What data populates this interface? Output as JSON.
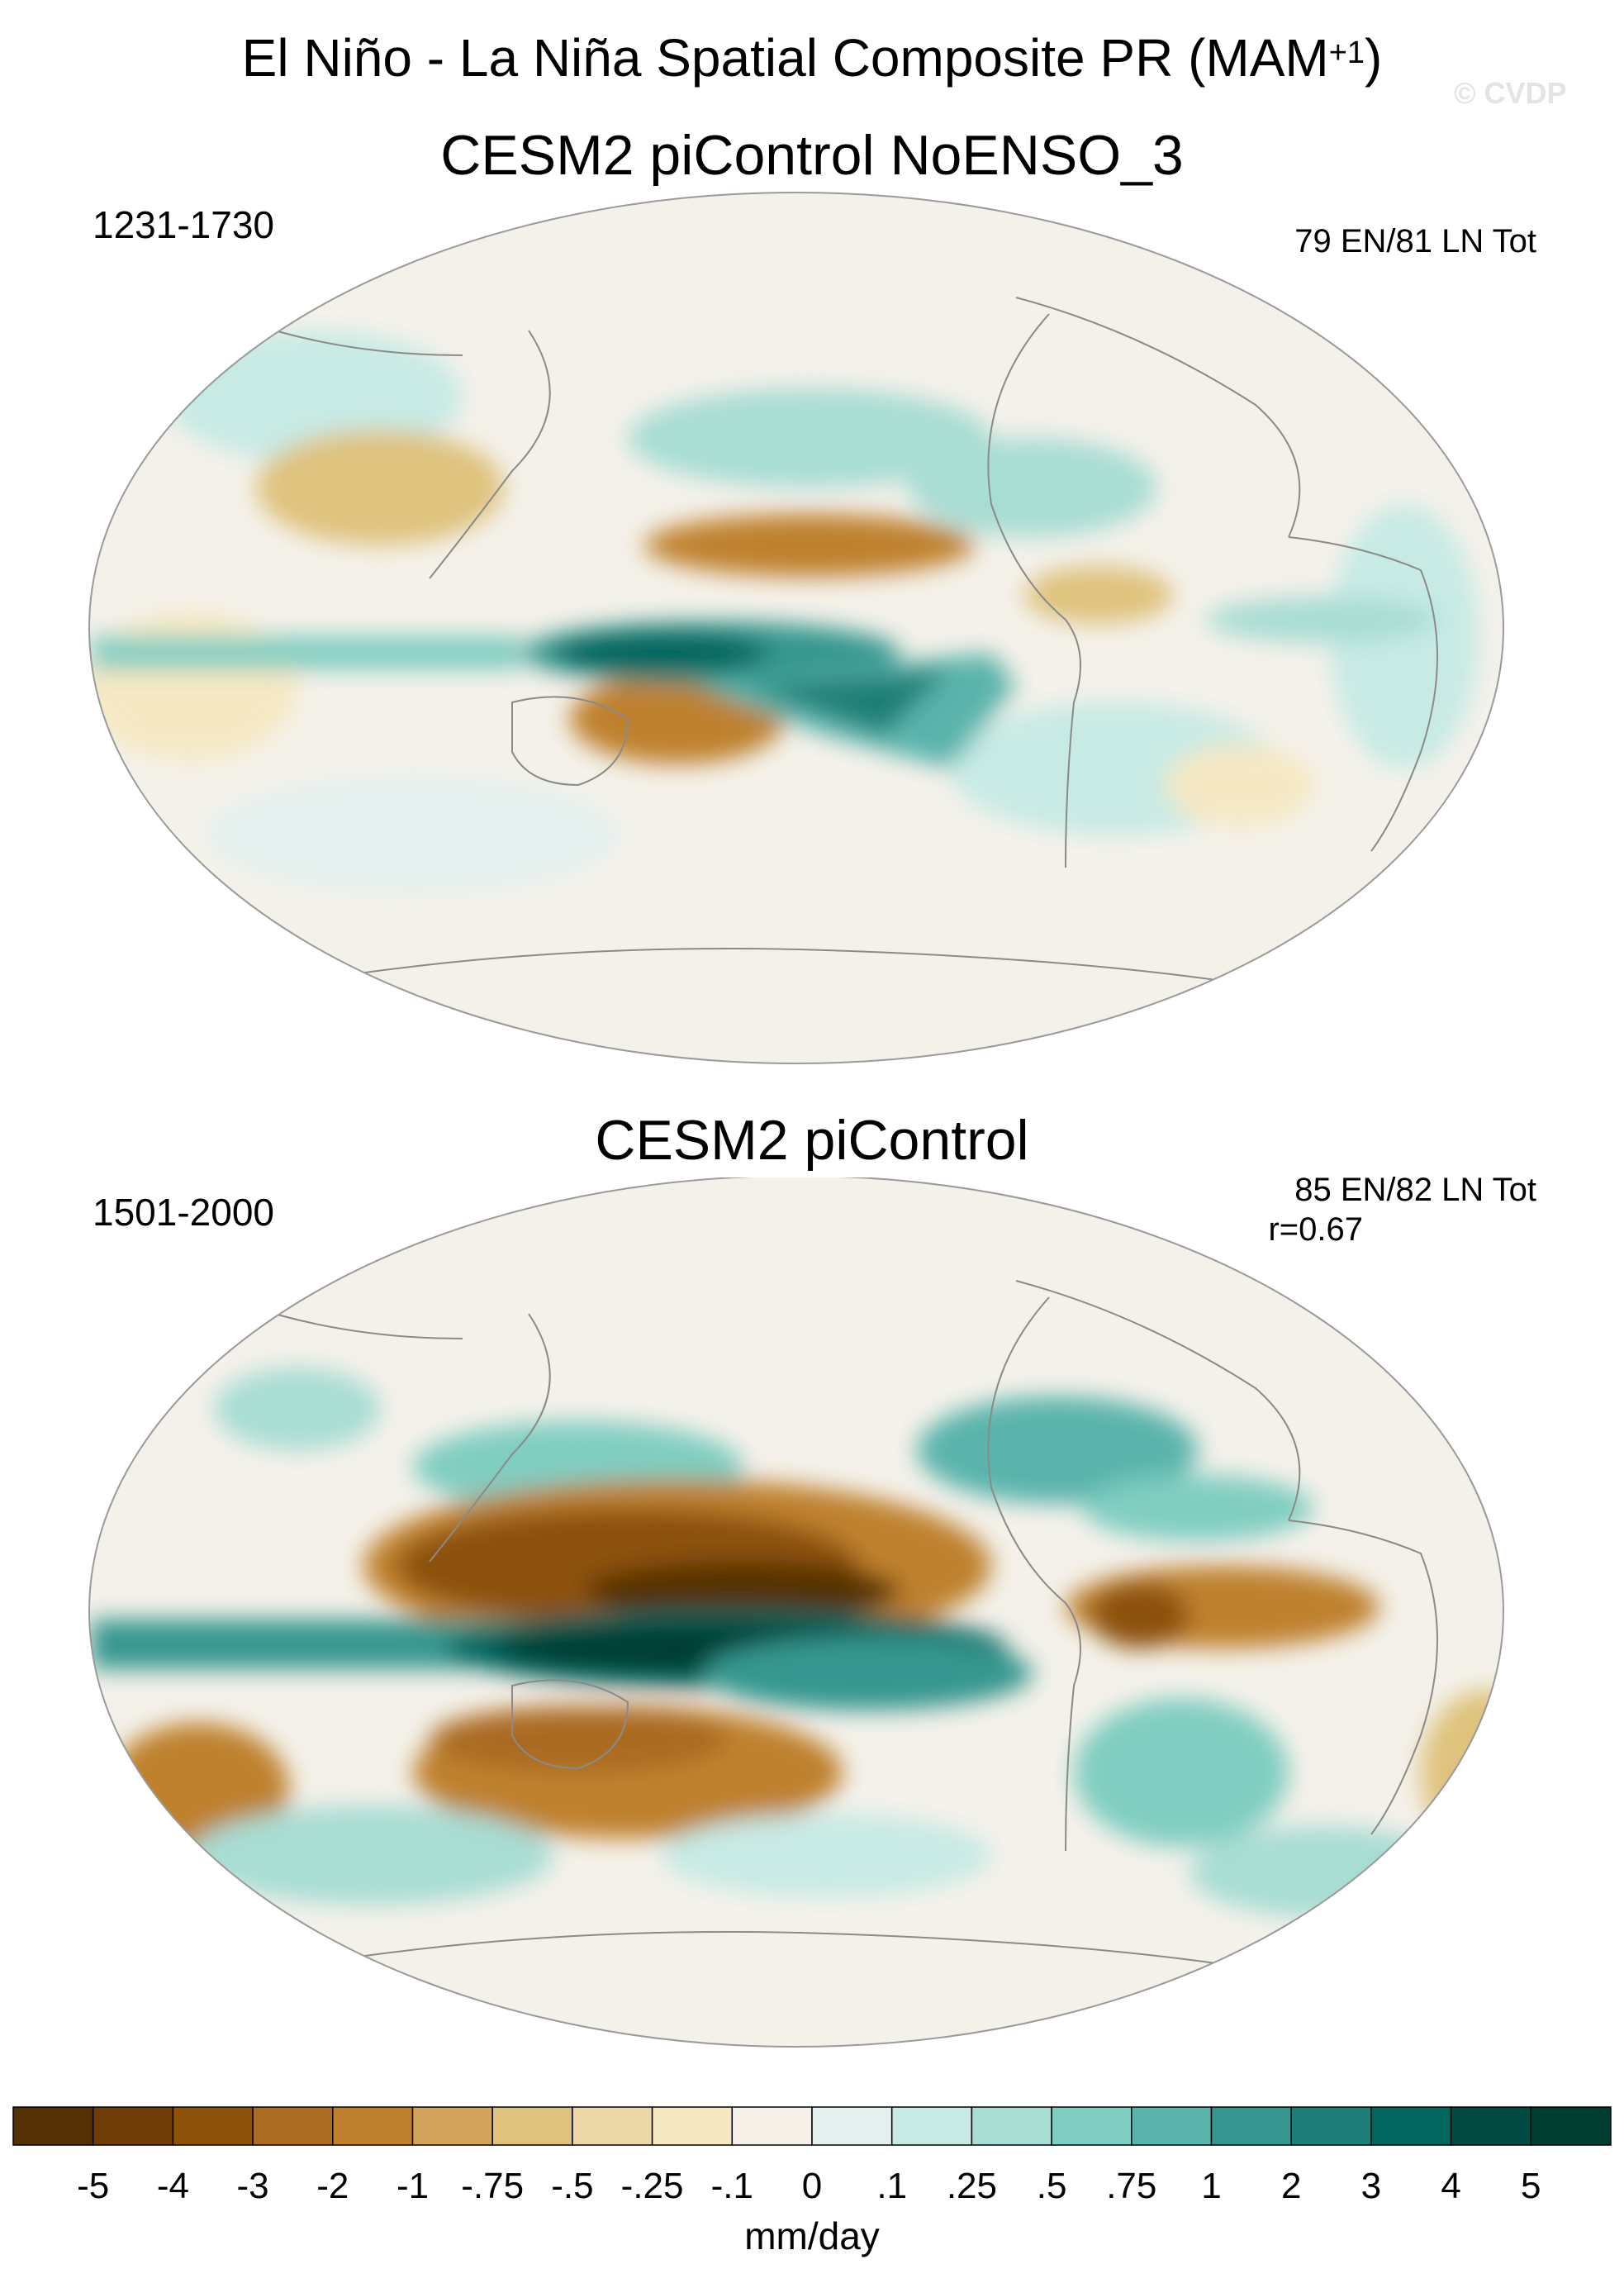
{
  "title": {
    "main": "El Niño - La Niña Spatial Composite PR (MAM",
    "superscript": "+1",
    "close": ")",
    "watermark": "© CVDP"
  },
  "panels": [
    {
      "title": "CESM2 piControl NoENSO_3",
      "period": "1231-1730",
      "counts": "79 EN/81 LN Tot",
      "pattern_correlation": ""
    },
    {
      "title": "CESM2 piControl",
      "period": "1501-2000",
      "counts": "85 EN/82 LN Tot",
      "pattern_correlation": "r=0.67"
    }
  ],
  "colorbar": {
    "units": "mm/day",
    "labels": [
      "-5",
      "-4",
      "-3",
      "-2",
      "-1",
      "-.75",
      "-.5",
      "-.25",
      "-.1",
      "0",
      ".1",
      ".25",
      ".5",
      ".75",
      "1",
      "2",
      "3",
      "4",
      "5"
    ],
    "colors": [
      "#543005",
      "#6f3d08",
      "#8c510a",
      "#ab6b22",
      "#bf812d",
      "#d2a35a",
      "#dfc27d",
      "#ecd7a8",
      "#f6e8c3",
      "#f5f1e8",
      "#e3f0ee",
      "#c7eae5",
      "#a8ddd4",
      "#80cdc1",
      "#5ab4ac",
      "#35978f",
      "#1d7f77",
      "#01665e",
      "#024a42",
      "#003c30"
    ]
  },
  "map_colors": {
    "ocean_background": "#f4f1ea",
    "coastline": "#8a8a8a",
    "frame": "#9a9a9a"
  }
}
